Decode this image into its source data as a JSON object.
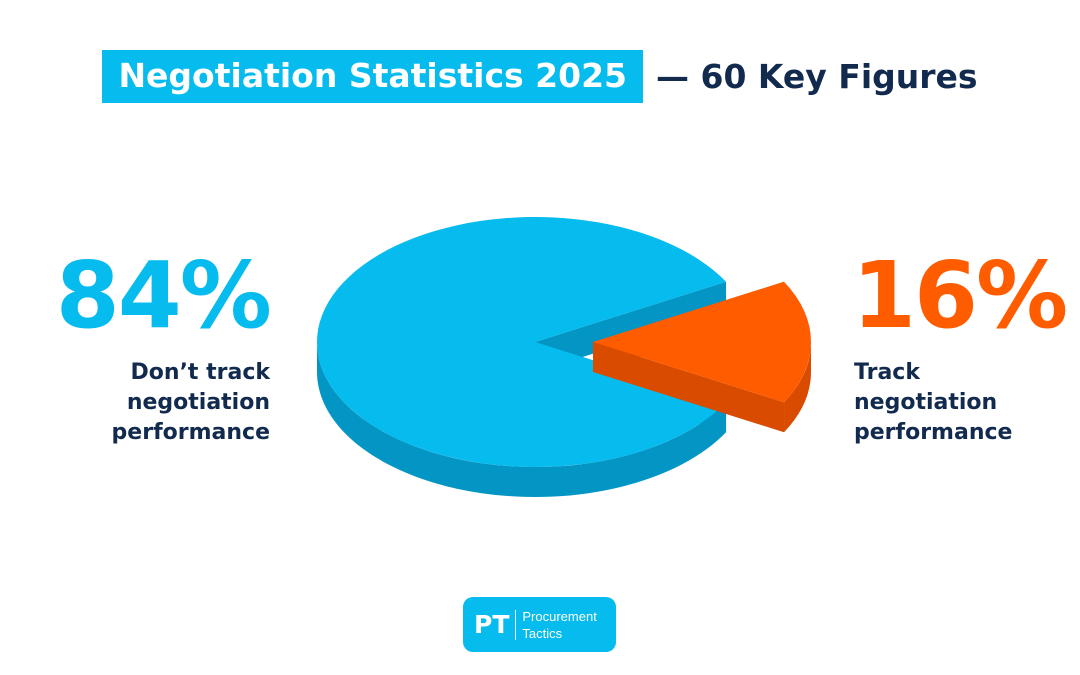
{
  "header": {
    "title_highlight": "Negotiation Statistics 2025",
    "title_rest": "— 60 Key Figures"
  },
  "colors": {
    "primary_blue": "#06bbee",
    "primary_blue_side": "#0396c4",
    "accent_orange": "#ff5c00",
    "accent_orange_side": "#d94c00",
    "navy_text": "#112a4d"
  },
  "chart_data": {
    "type": "pie",
    "title": "",
    "exploded": true,
    "three_d": true,
    "series": [
      {
        "label_value": "84%",
        "value": 84,
        "label_lines": [
          "Don’t track",
          "negotiation",
          "performance"
        ],
        "color": "#06bbee",
        "side_color": "#0396c4"
      },
      {
        "label_value": "16%",
        "value": 16,
        "label_lines": [
          "Track",
          "negotiation",
          "performance"
        ],
        "color": "#ff5c00",
        "side_color": "#d94c00"
      }
    ]
  },
  "logo": {
    "mark": "PT",
    "name_lines": [
      "Procurement",
      "Tactics"
    ]
  }
}
